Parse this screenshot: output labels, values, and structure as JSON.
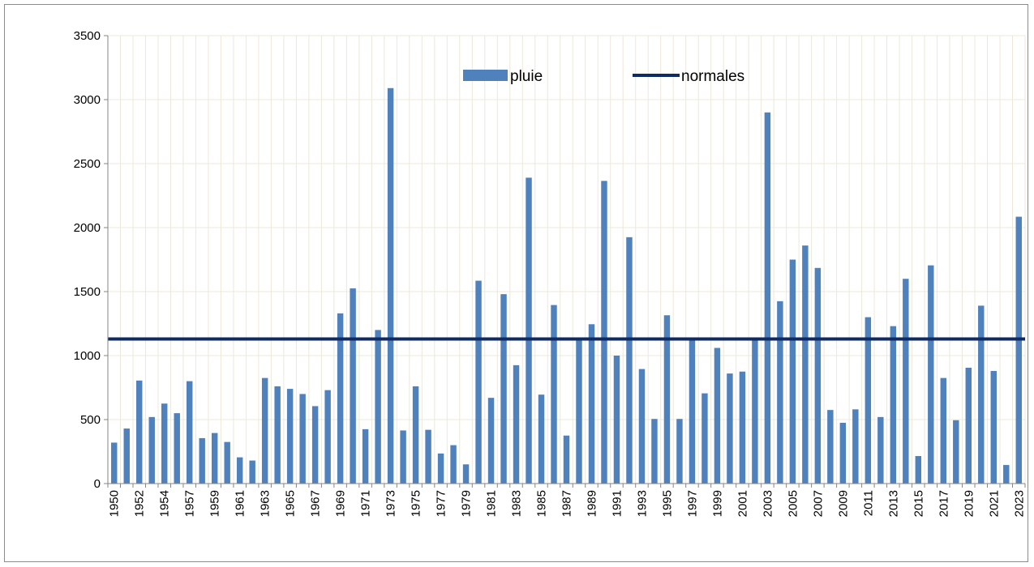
{
  "chart_data": {
    "type": "bar",
    "ylim": [
      0,
      3500
    ],
    "yticks": [
      0,
      500,
      1000,
      1500,
      2000,
      2500,
      3000,
      3500
    ],
    "grid": true,
    "legend_position": "top-center",
    "years": [
      1950,
      1951,
      1952,
      1953,
      1954,
      1955,
      1957,
      1958,
      1959,
      1960,
      1961,
      1962,
      1963,
      1964,
      1965,
      1966,
      1967,
      1968,
      1969,
      1970,
      1971,
      1972,
      1973,
      1974,
      1975,
      1976,
      1977,
      1978,
      1979,
      1980,
      1981,
      1982,
      1983,
      1984,
      1985,
      1986,
      1987,
      1988,
      1989,
      1990,
      1991,
      1992,
      1993,
      1994,
      1995,
      1996,
      1997,
      1998,
      1999,
      2000,
      2001,
      2002,
      2003,
      2004,
      2005,
      2006,
      2007,
      2008,
      2009,
      2010,
      2011,
      2012,
      2013,
      2014,
      2015,
      2016,
      2017,
      2018,
      2019,
      2020,
      2021,
      2022,
      2023
    ],
    "tick_labels": [
      "1950",
      "1952",
      "1954",
      "1957",
      "1959",
      "1961",
      "1963",
      "1965",
      "1967",
      "1969",
      "1971",
      "1973",
      "1975",
      "1977",
      "1979",
      "1981",
      "1983",
      "1985",
      "1987",
      "1989",
      "1991",
      "1993",
      "1995",
      "1997",
      "1999",
      "2001",
      "2003",
      "2005",
      "2007",
      "2009",
      "2011",
      "2013",
      "2015",
      "2017",
      "2019",
      "2021",
      "2023"
    ],
    "series": [
      {
        "name": "pluie",
        "kind": "bar",
        "color": "#4f81bd",
        "values": [
          320,
          430,
          805,
          520,
          625,
          550,
          800,
          355,
          395,
          325,
          205,
          180,
          825,
          760,
          740,
          700,
          605,
          730,
          1330,
          1525,
          425,
          1200,
          3090,
          415,
          760,
          420,
          235,
          300,
          150,
          1585,
          670,
          1480,
          925,
          2390,
          695,
          1395,
          375,
          1130,
          1245,
          2365,
          1000,
          1925,
          895,
          505,
          1315,
          505,
          1130,
          705,
          1060,
          860,
          875,
          1130,
          2900,
          1425,
          1750,
          1860,
          1685,
          575,
          475,
          580,
          1300,
          520,
          1230,
          1600,
          215,
          1705,
          825,
          495,
          905,
          1390,
          880,
          145,
          2085
        ]
      },
      {
        "name": "normales",
        "kind": "line",
        "color": "#0f2b63",
        "value": 1130
      }
    ]
  }
}
